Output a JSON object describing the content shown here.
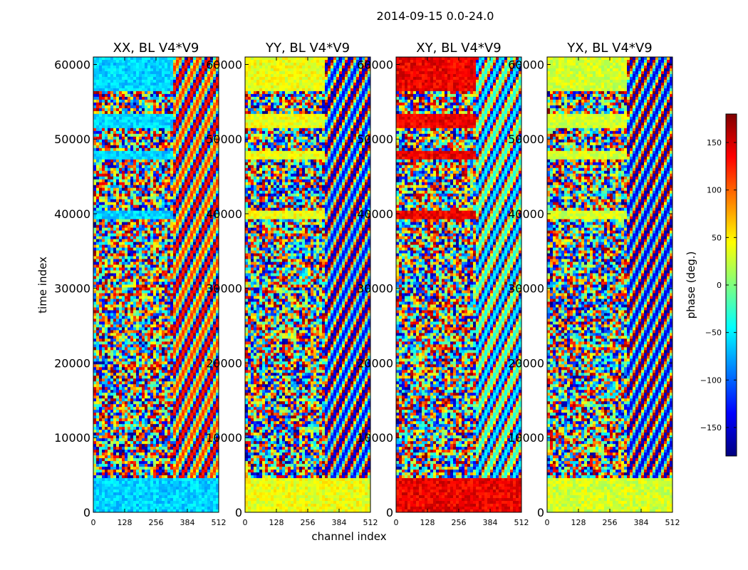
{
  "figure": {
    "suptitle": "2014-09-15 0.0-24.0"
  },
  "chart_data": {
    "type": "heatmap",
    "title": "2014-09-15 0.0-24.0",
    "xlabel": "channel index",
    "ylabel": "time index",
    "xlim": [
      0,
      512
    ],
    "ylim": [
      0,
      61000
    ],
    "xticks": [
      "0",
      "128",
      "256",
      "384",
      "512"
    ],
    "yticks": [
      "0",
      "10000",
      "20000",
      "30000",
      "40000",
      "50000",
      "60000"
    ],
    "colorbar": {
      "label": "phase (deg.)",
      "range": [
        -180,
        180
      ],
      "ticks": [
        "−150",
        "−100",
        "−50",
        "0",
        "50",
        "100",
        "150"
      ],
      "colormap": "jet"
    },
    "panels": [
      {
        "title": "XX, BL V4*V9",
        "base_phase": -60
      },
      {
        "title": "YY, BL V4*V9",
        "base_phase": 40
      },
      {
        "title": "XY, BL V4*V9",
        "base_phase": 140
      },
      {
        "title": "YX, BL V4*V9",
        "base_phase": 30
      }
    ]
  }
}
